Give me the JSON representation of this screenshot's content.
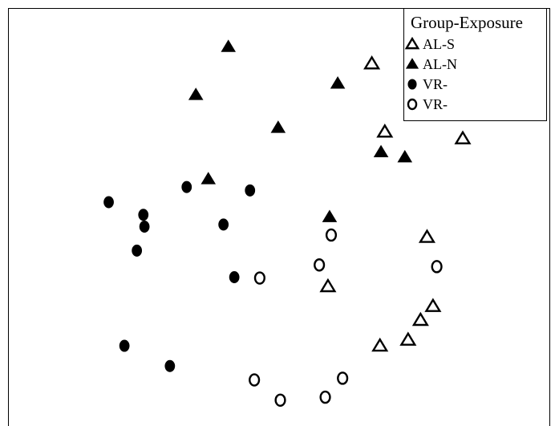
{
  "chart_data": {
    "type": "scatter",
    "title": "",
    "xlabel": "",
    "ylabel": "",
    "xlim": [
      0,
      100
    ],
    "ylim": [
      0,
      100
    ],
    "grid": false,
    "legend": {
      "title": "Group-Exposure",
      "placement": "top-right"
    },
    "series": [
      {
        "name": "AL-S",
        "marker": "triangle-open",
        "x": [
          67.2,
          69.6,
          84.0,
          77.4,
          59.1,
          78.5,
          76.2,
          73.9,
          68.7
        ],
        "y": [
          86.8,
          70.6,
          69.0,
          45.6,
          33.9,
          29.2,
          25.9,
          21.2,
          19.8
        ]
      },
      {
        "name": "AL-N",
        "marker": "triangle-filled",
        "x": [
          40.7,
          34.7,
          60.9,
          49.9,
          68.9,
          73.3,
          37.0,
          59.4
        ],
        "y": [
          90.8,
          79.4,
          82.1,
          71.6,
          65.8,
          64.6,
          59.4,
          50.4
        ]
      },
      {
        "name": "VR-",
        "marker": "circle-filled",
        "x": [
          18.6,
          33.0,
          44.7,
          25.0,
          25.2,
          39.8,
          23.8,
          41.8,
          21.5,
          29.9
        ],
        "y": [
          53.9,
          57.5,
          56.7,
          50.9,
          48.1,
          48.6,
          42.4,
          36.1,
          19.8,
          15.0
        ]
      },
      {
        "name": "VR-",
        "marker": "circle-open",
        "x": [
          59.7,
          79.2,
          57.5,
          46.5,
          61.8,
          45.5,
          58.6,
          50.3
        ],
        "y": [
          46.1,
          38.6,
          39.0,
          35.9,
          12.1,
          11.7,
          7.6,
          6.9
        ]
      }
    ]
  }
}
